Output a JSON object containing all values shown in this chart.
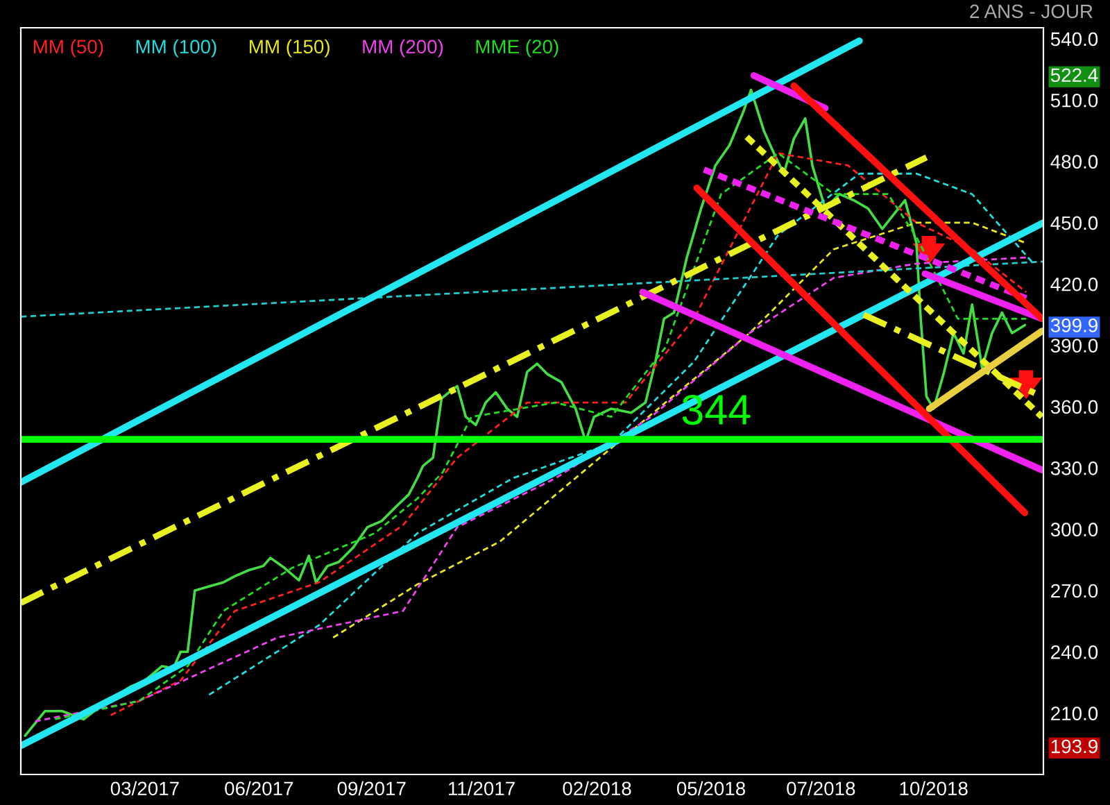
{
  "chart_data": {
    "type": "line",
    "subtitle": "2 ANS - JOUR",
    "xlim": [
      "2017-01-02",
      "2018-12-20"
    ],
    "ylim": [
      180,
      545.4
    ],
    "xticks": [
      {
        "value": "2017-03-30",
        "label": "03/2017"
      },
      {
        "value": "2017-06-18",
        "label": "06/2017"
      },
      {
        "value": "2017-09-05",
        "label": "09/2017"
      },
      {
        "value": "2017-11-21",
        "label": "11/2017"
      },
      {
        "value": "2018-02-10",
        "label": "02/2018"
      },
      {
        "value": "2018-05-01",
        "label": "05/2018"
      },
      {
        "value": "2018-07-17",
        "label": "07/2018"
      },
      {
        "value": "2018-10-04",
        "label": "10/2018"
      }
    ],
    "yticks": [
      {
        "value": 193.9,
        "label": "193.9"
      },
      {
        "value": 210,
        "label": "210.0"
      },
      {
        "value": 240,
        "label": "240.0"
      },
      {
        "value": 270,
        "label": "270.0"
      },
      {
        "value": 300,
        "label": "300.0"
      },
      {
        "value": 330,
        "label": "330.0"
      },
      {
        "value": 360,
        "label": "360.0"
      },
      {
        "value": 390,
        "label": "390.0"
      },
      {
        "value": 399.9,
        "label": "399.9"
      },
      {
        "value": 420,
        "label": "420.0"
      },
      {
        "value": 450,
        "label": "450.0"
      },
      {
        "value": 480,
        "label": "480.0"
      },
      {
        "value": 510,
        "label": "510.0"
      },
      {
        "value": 522.4,
        "label": "522.4"
      },
      {
        "value": 540,
        "label": "540.0"
      }
    ],
    "grid": false,
    "legend": "top left",
    "marker": "none",
    "series": [
      {
        "color": "#44dd44",
        "x": [
          "2017-01-05",
          "2017-01-19",
          "2017-01-31",
          "2017-02-15",
          "2017-03-02",
          "2017-03-20",
          "2017-03-30",
          "2017-04-11",
          "2017-04-19",
          "2017-04-24",
          "2017-04-29",
          "2017-05-04",
          "2017-05-14",
          "2017-05-24",
          "2017-06-01",
          "2017-06-11",
          "2017-06-21",
          "2017-06-26",
          "2017-07-06",
          "2017-07-16",
          "2017-07-23",
          "2017-07-28",
          "2017-08-05",
          "2017-08-13",
          "2017-08-23",
          "2017-09-02",
          "2017-09-12",
          "2017-09-22",
          "2017-10-01",
          "2017-10-07",
          "2017-10-11",
          "2017-10-18",
          "2017-10-24",
          "2017-10-31",
          "2017-11-04",
          "2017-11-10",
          "2017-11-17",
          "2017-11-24",
          "2017-12-01",
          "2017-12-09",
          "2017-12-16",
          "2017-12-23",
          "2017-12-30",
          "2018-01-06",
          "2018-01-16",
          "2018-01-26",
          "2018-02-02",
          "2018-02-08",
          "2018-02-20",
          "2018-03-06",
          "2018-03-16",
          "2018-03-23",
          "2018-03-29",
          "2018-04-05",
          "2018-04-14",
          "2018-04-24",
          "2018-05-04",
          "2018-05-14",
          "2018-05-24",
          "2018-05-29",
          "2018-06-07",
          "2018-06-14",
          "2018-06-21",
          "2018-06-28",
          "2018-07-06",
          "2018-07-11",
          "2018-07-20",
          "2018-07-30",
          "2018-08-09",
          "2018-08-19",
          "2018-08-29",
          "2018-09-06",
          "2018-09-14",
          "2018-09-22",
          "2018-09-25",
          "2018-09-29",
          "2018-10-04",
          "2018-10-11",
          "2018-10-18",
          "2018-10-25",
          "2018-10-31",
          "2018-11-07",
          "2018-11-14",
          "2018-11-21",
          "2018-11-28",
          "2018-12-07"
        ],
        "values": [
          199,
          211,
          211,
          207,
          215,
          223,
          226,
          233,
          232,
          240,
          240,
          270,
          272,
          274,
          277,
          280,
          282,
          286,
          281,
          275,
          287,
          274,
          282,
          284,
          291,
          301,
          304,
          311,
          317,
          325,
          331,
          335,
          364,
          368,
          370,
          355,
          351,
          362,
          367,
          359,
          355,
          377,
          381,
          376,
          372,
          359,
          343,
          355,
          359,
          357,
          362,
          382,
          403,
          406,
          433,
          457,
          478,
          488,
          505,
          515,
          495,
          484,
          474,
          491,
          501,
          478,
          457,
          464,
          461,
          457,
          447,
          454,
          461,
          440,
          403,
          365,
          359,
          376,
          396,
          386,
          410,
          379,
          396,
          406,
          396,
          399.9
        ]
      },
      {
        "name": "MM (50)",
        "color": "#ff2020",
        "line_style": "dashed",
        "x": [
          "2017-03-06",
          "2017-04-24",
          "2017-06-01",
          "2017-07-30",
          "2017-09-27",
          "2017-11-04",
          "2017-12-23",
          "2018-03-02",
          "2018-04-19",
          "2018-06-17",
          "2018-08-05",
          "2018-09-22",
          "2018-10-31",
          "2018-12-08"
        ],
        "values": [
          209,
          226,
          260,
          274,
          302,
          335,
          362,
          362,
          403,
          484,
          478,
          450,
          437,
          416
        ]
      },
      {
        "name": "MM (100)",
        "color": "#22dddd",
        "line_style": "dashed",
        "x": [
          "2017-05-14",
          "2017-07-30",
          "2017-10-07",
          "2017-12-13",
          "2018-02-20",
          "2018-04-19",
          "2018-06-17",
          "2018-08-13",
          "2018-09-22",
          "2018-10-31",
          "2018-12-13"
        ],
        "values": [
          219,
          253,
          298,
          325,
          342,
          382,
          444,
          474,
          474,
          464,
          430
        ]
      },
      {
        "name": "MM (150)",
        "color": "#e8e820",
        "line_style": "dashed",
        "x": [
          "2017-08-09",
          "2017-10-07",
          "2017-12-04",
          "2018-01-31",
          "2018-03-30",
          "2018-05-28",
          "2018-07-26",
          "2018-09-22",
          "2018-10-31",
          "2018-12-08"
        ],
        "values": [
          247,
          273,
          294,
          328,
          362,
          396,
          437,
          450,
          450,
          440
        ]
      },
      {
        "name": "MM (200)",
        "color": "#ee44ee",
        "line_style": "dashed",
        "x": [
          "2017-01-12",
          "2017-03-26",
          "2017-07-01",
          "2017-09-27",
          "2017-11-04",
          "2018-01-12",
          "2018-03-20",
          "2018-05-28",
          "2018-07-26",
          "2018-09-22",
          "2018-12-08"
        ],
        "values": [
          206,
          216,
          247,
          260,
          301,
          325,
          355,
          396,
          423,
          430,
          433
        ]
      },
      {
        "name": "MME (20)",
        "color": "#22dd22",
        "line_style": "dashed",
        "x": [
          "2017-01-26",
          "2017-03-26",
          "2017-04-29",
          "2017-05-24",
          "2017-07-11",
          "2017-09-07",
          "2017-10-07",
          "2017-10-25",
          "2017-11-14",
          "2018-01-12",
          "2018-02-20",
          "2018-03-30",
          "2018-05-08",
          "2018-06-17",
          "2018-07-26",
          "2018-09-02",
          "2018-09-22",
          "2018-10-21",
          "2018-12-08"
        ],
        "values": [
          207,
          216,
          233,
          260,
          281,
          298,
          315,
          328,
          355,
          362,
          355,
          389,
          464,
          484,
          464,
          464,
          443,
          403,
          403
        ]
      },
      {
        "color": "#22cccc",
        "line_style": "dashed",
        "x": [
          "2017-01-02",
          "2018-12-20"
        ],
        "values": [
          404,
          431
        ]
      },
      {
        "color": "#22e6f0",
        "line_style": "solid",
        "x": [
          "2017-01-02",
          "2018-08-13"
        ],
        "values": [
          323,
          539
        ]
      },
      {
        "color": "#22e6f0",
        "line_style": "solid",
        "x": [
          "2017-01-02",
          "2018-12-20"
        ],
        "values": [
          194,
          450
        ]
      },
      {
        "color": "#e8f020",
        "line_style": "dashdot",
        "x": [
          "2017-01-02",
          "2018-09-29"
        ],
        "values": [
          264,
          482
        ]
      },
      {
        "color": "#e8f020",
        "line_style": "dotted",
        "x": [
          "2018-05-26",
          "2018-12-19"
        ],
        "values": [
          492,
          355
        ]
      },
      {
        "color": "#e8f020",
        "line_style": "dashdot",
        "x": [
          "2018-08-16",
          "2018-12-19"
        ],
        "values": [
          405,
          365
        ]
      },
      {
        "color": "#ee22ee",
        "line_style": "dotted",
        "x": [
          "2018-04-26",
          "2018-12-08"
        ],
        "values": [
          476,
          413
        ]
      },
      {
        "color": "#ee22ee",
        "line_style": "solid",
        "x": [
          "2018-05-31",
          "2018-07-20"
        ],
        "values": [
          522,
          506
        ]
      },
      {
        "color": "#ee22ee",
        "line_style": "solid",
        "x": [
          "2018-03-14",
          "2018-12-19"
        ],
        "values": [
          416,
          329
        ]
      },
      {
        "color": "#ee22ee",
        "line_style": "solid",
        "x": [
          "2018-09-28",
          "2018-12-19"
        ],
        "values": [
          425,
          403
        ]
      },
      {
        "color": "#ff1010",
        "line_style": "solid",
        "x": [
          "2018-06-28",
          "2018-12-19"
        ],
        "values": [
          517,
          403
        ]
      },
      {
        "color": "#ff1010",
        "line_style": "solid",
        "x": [
          "2018-04-21",
          "2018-12-07"
        ],
        "values": [
          467,
          308
        ]
      },
      {
        "color": "#e8d040",
        "line_style": "solid",
        "x": [
          "2018-10-01",
          "2018-12-19"
        ],
        "values": [
          359,
          397
        ]
      }
    ],
    "ref_lines": [
      {
        "axis": "y",
        "value": 344,
        "label": "344",
        "color": "#00ff00"
      }
    ]
  }
}
